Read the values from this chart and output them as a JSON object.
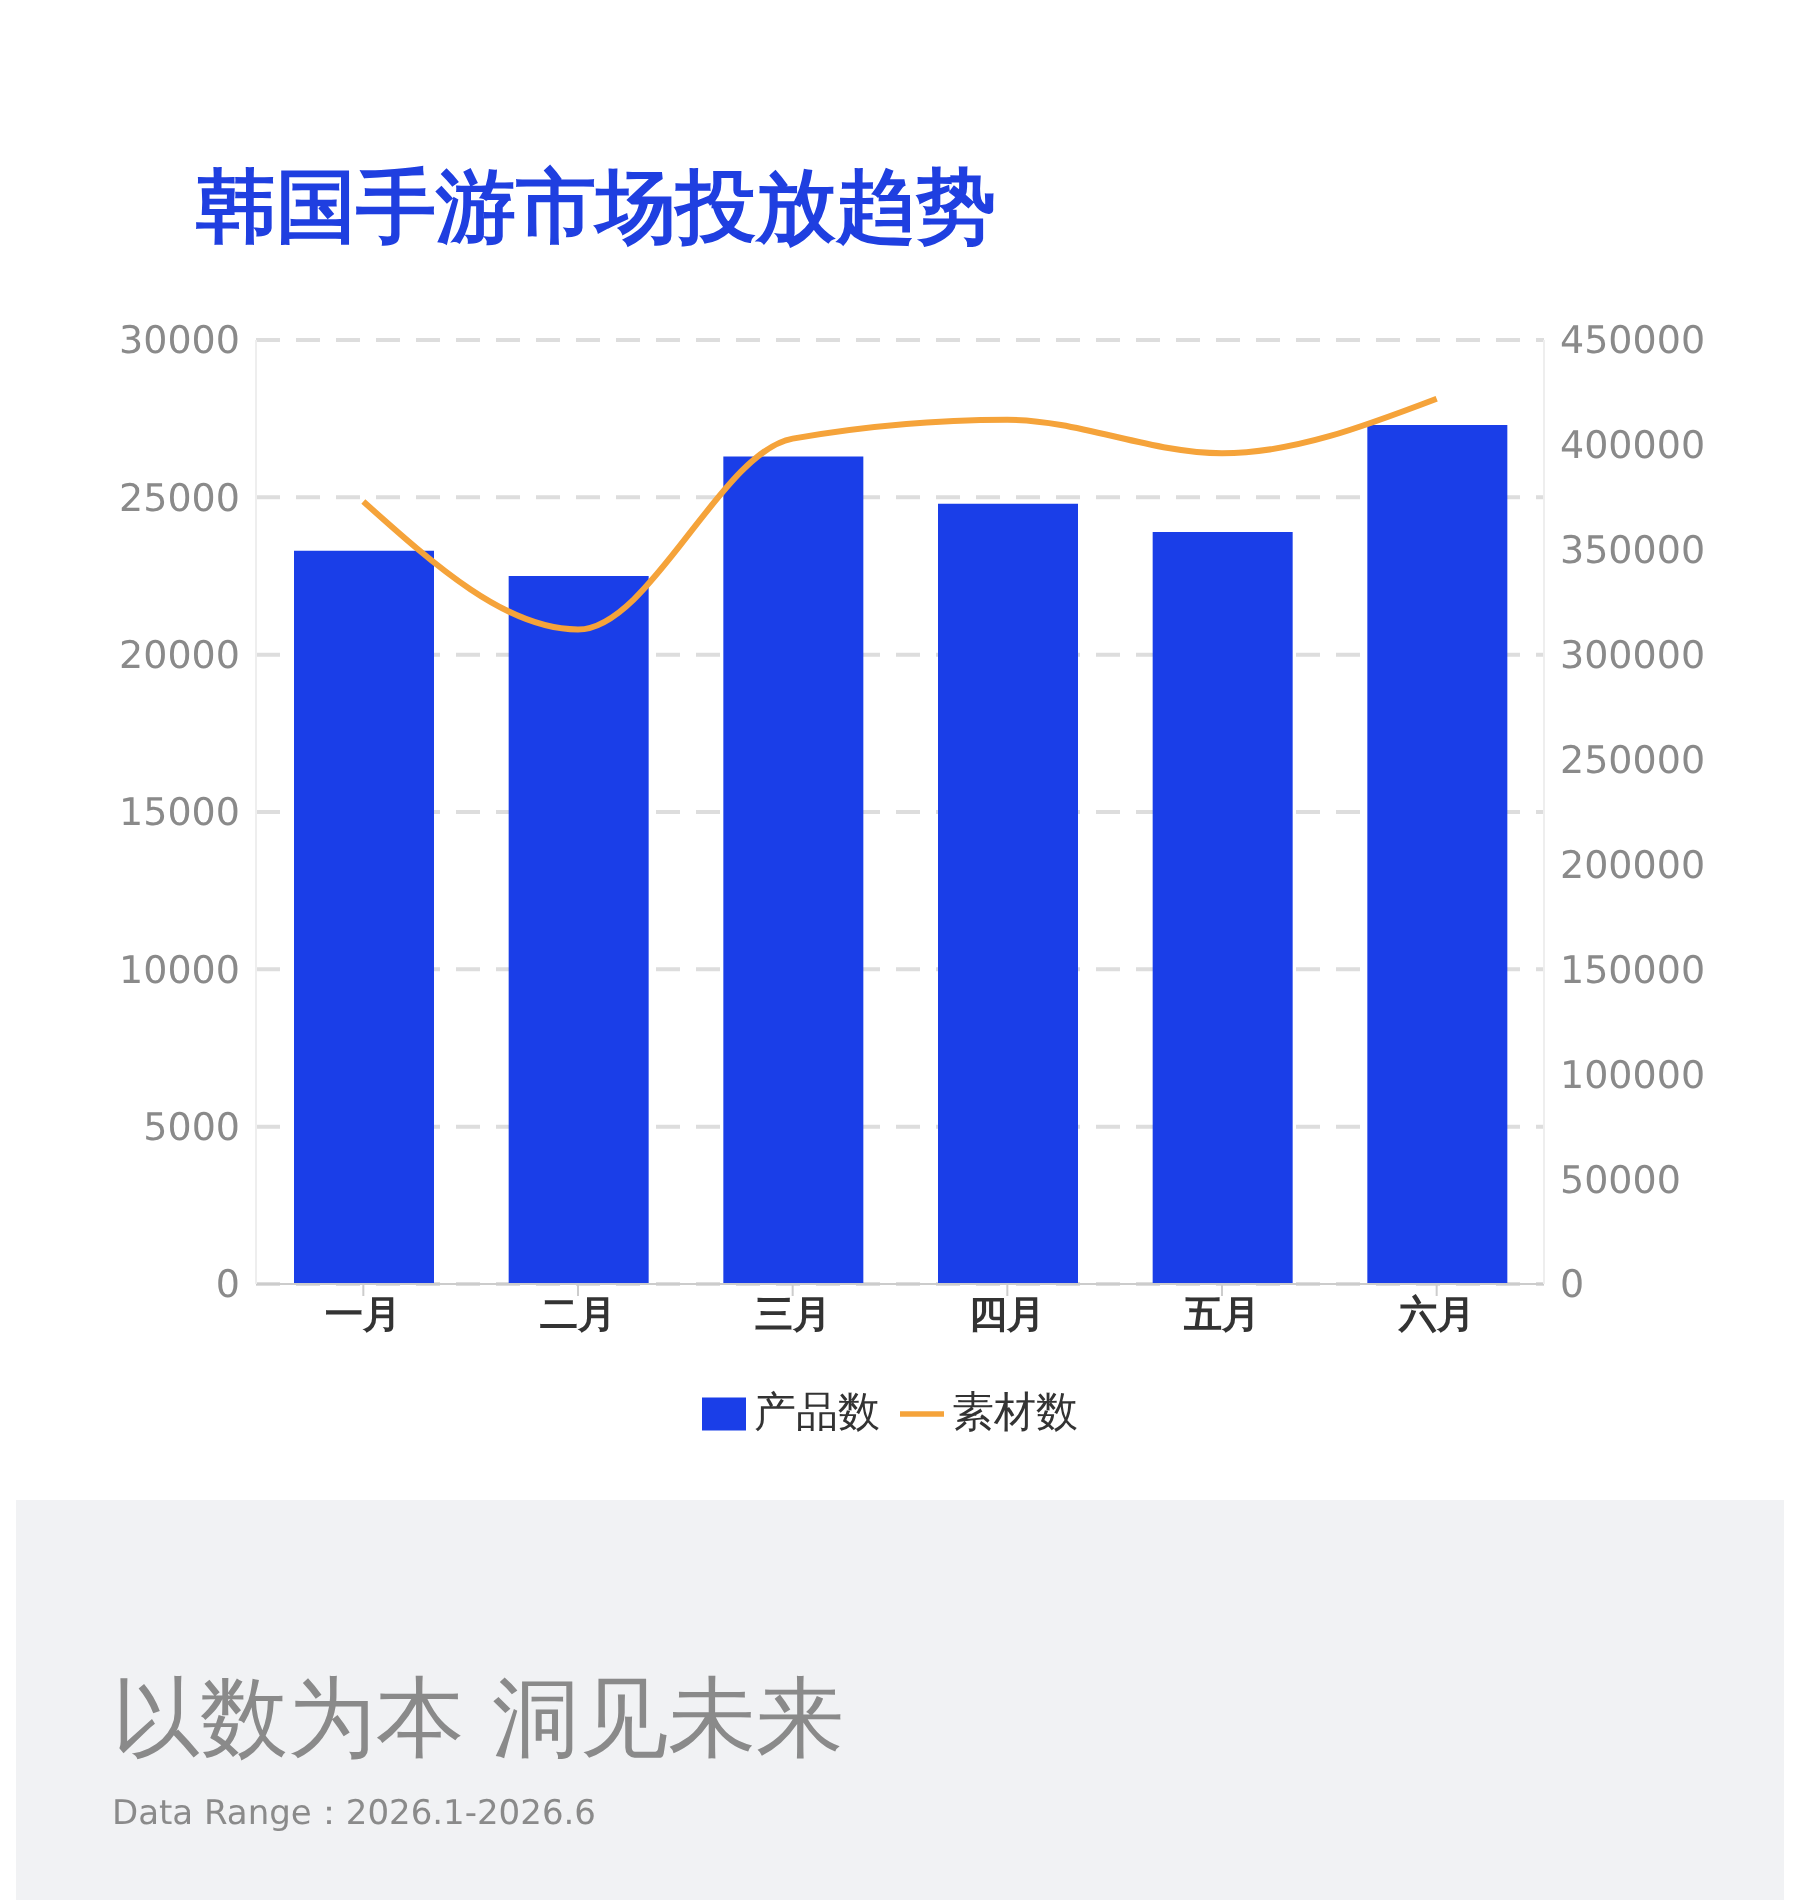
{
  "chart_data": {
    "type": "bar",
    "title": "韩国手游市场投放趋势",
    "categories": [
      "一月",
      "二月",
      "三月",
      "四月",
      "五月",
      "六月"
    ],
    "series": [
      {
        "name": "产品数",
        "color": "#1a3ee8",
        "values": [
          23300,
          22500,
          26300,
          24800,
          23900,
          27300
        ]
      },
      {
        "name": "素材数",
        "type": "line",
        "axis": "y2",
        "color": "#f5a33a",
        "values": [
          373000,
          312000,
          403000,
          412000,
          396000,
          422000
        ]
      }
    ],
    "ylim": [
      0,
      30000
    ],
    "yticks": [
      0,
      5000,
      10000,
      15000,
      20000,
      25000,
      30000
    ],
    "y2lim": [
      0,
      450000
    ],
    "y2ticks": [
      0,
      50000,
      100000,
      150000,
      200000,
      250000,
      300000,
      350000,
      400000,
      450000
    ],
    "grid": "y",
    "legend": "bottom",
    "marker": "none",
    "annotations": [
      "以数为本 洞见未来",
      "Data Range：2026.1-2026.6"
    ]
  }
}
